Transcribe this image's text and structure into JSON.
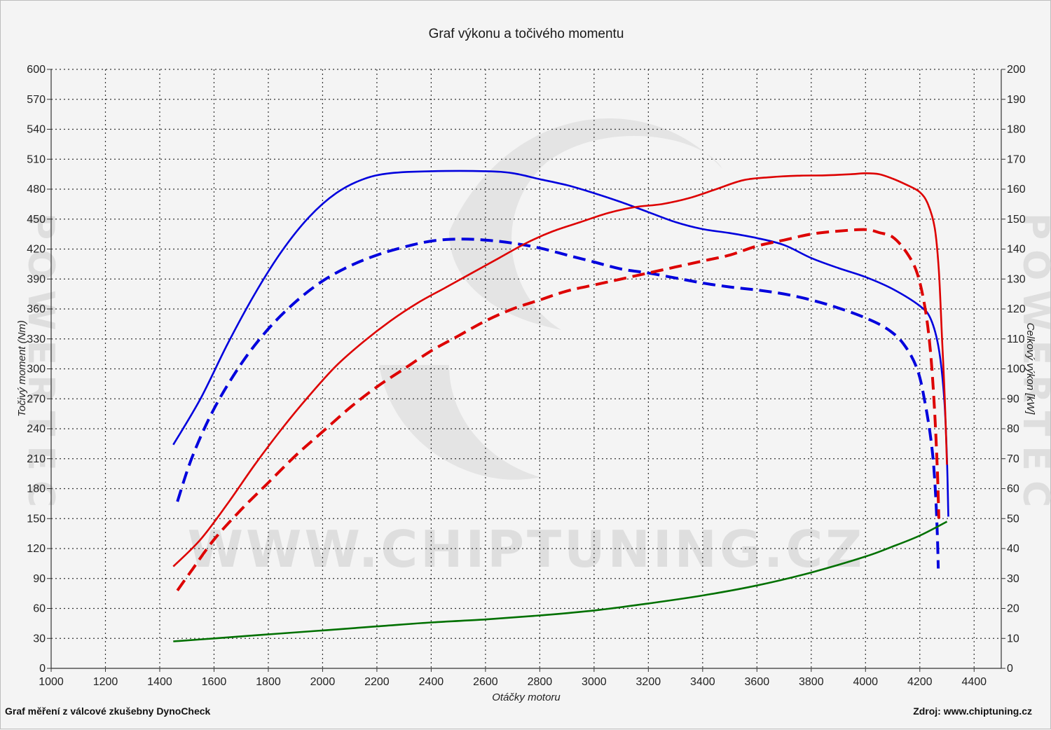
{
  "chart_data": {
    "type": "line",
    "title": "Graf výkonu a točivého momentu",
    "xlabel": "Otáčky motoru",
    "ylabel_left": "Točivý moment (Nm)",
    "ylabel_right": "Celkový výkon [kW]",
    "xlim": [
      1000,
      4500
    ],
    "xticks": [
      1000,
      1200,
      1400,
      1600,
      1800,
      2000,
      2200,
      2400,
      2600,
      2800,
      3000,
      3200,
      3400,
      3600,
      3800,
      4000,
      4200,
      4400
    ],
    "ylim_left": [
      0,
      600
    ],
    "yticks_left": [
      0,
      30,
      60,
      90,
      120,
      150,
      180,
      210,
      240,
      270,
      300,
      330,
      360,
      390,
      420,
      450,
      480,
      510,
      540,
      570,
      600
    ],
    "ylim_right": [
      0,
      200
    ],
    "yticks_right": [
      0,
      10,
      20,
      30,
      40,
      50,
      60,
      70,
      80,
      90,
      100,
      110,
      120,
      130,
      140,
      150,
      160,
      170,
      180,
      190,
      200
    ],
    "grid": true,
    "series": [
      {
        "name": "",
        "axis": "left",
        "color": "#0000dd",
        "style": "solid",
        "points": [
          [
            1450,
            224
          ],
          [
            1550,
            270
          ],
          [
            1650,
            325
          ],
          [
            1750,
            375
          ],
          [
            1850,
            418
          ],
          [
            1950,
            452
          ],
          [
            2050,
            476
          ],
          [
            2150,
            490
          ],
          [
            2250,
            496
          ],
          [
            2400,
            498
          ],
          [
            2600,
            498
          ],
          [
            2700,
            496
          ],
          [
            2800,
            490
          ],
          [
            2900,
            484
          ],
          [
            3000,
            476
          ],
          [
            3100,
            467
          ],
          [
            3200,
            457
          ],
          [
            3300,
            447
          ],
          [
            3400,
            440
          ],
          [
            3500,
            436
          ],
          [
            3600,
            431
          ],
          [
            3700,
            424
          ],
          [
            3800,
            411
          ],
          [
            3900,
            401
          ],
          [
            4000,
            392
          ],
          [
            4100,
            380
          ],
          [
            4200,
            363
          ],
          [
            4240,
            350
          ],
          [
            4270,
            320
          ],
          [
            4290,
            270
          ],
          [
            4300,
            210
          ],
          [
            4305,
            152
          ]
        ]
      },
      {
        "name": "",
        "axis": "left",
        "color": "#0000dd",
        "style": "dashed",
        "points": [
          [
            1465,
            167
          ],
          [
            1520,
            212
          ],
          [
            1600,
            260
          ],
          [
            1700,
            305
          ],
          [
            1800,
            340
          ],
          [
            1900,
            367
          ],
          [
            2000,
            388
          ],
          [
            2100,
            403
          ],
          [
            2200,
            414
          ],
          [
            2300,
            422
          ],
          [
            2400,
            428
          ],
          [
            2500,
            430
          ],
          [
            2600,
            429
          ],
          [
            2700,
            426
          ],
          [
            2800,
            421
          ],
          [
            2900,
            414
          ],
          [
            3000,
            407
          ],
          [
            3100,
            400
          ],
          [
            3200,
            396
          ],
          [
            3300,
            391
          ],
          [
            3400,
            386
          ],
          [
            3500,
            382
          ],
          [
            3600,
            379
          ],
          [
            3700,
            375
          ],
          [
            3800,
            369
          ],
          [
            3900,
            361
          ],
          [
            4000,
            351
          ],
          [
            4080,
            340
          ],
          [
            4140,
            325
          ],
          [
            4190,
            300
          ],
          [
            4220,
            265
          ],
          [
            4245,
            220
          ],
          [
            4258,
            175
          ],
          [
            4265,
            130
          ],
          [
            4268,
            100
          ]
        ]
      },
      {
        "name": "",
        "axis": "right",
        "color": "#dd0000",
        "style": "solid",
        "points": [
          [
            1450,
            34
          ],
          [
            1550,
            43
          ],
          [
            1650,
            55
          ],
          [
            1750,
            68
          ],
          [
            1850,
            80
          ],
          [
            1950,
            91
          ],
          [
            2050,
            101
          ],
          [
            2150,
            109
          ],
          [
            2250,
            116
          ],
          [
            2350,
            122
          ],
          [
            2450,
            127
          ],
          [
            2550,
            132
          ],
          [
            2650,
            137
          ],
          [
            2750,
            142
          ],
          [
            2850,
            146
          ],
          [
            2950,
            149
          ],
          [
            3050,
            152
          ],
          [
            3150,
            154
          ],
          [
            3250,
            155
          ],
          [
            3350,
            157
          ],
          [
            3450,
            160
          ],
          [
            3550,
            163
          ],
          [
            3650,
            164
          ],
          [
            3750,
            164.5
          ],
          [
            3850,
            164.6
          ],
          [
            3950,
            165
          ],
          [
            4000,
            165.3
          ],
          [
            4050,
            165
          ],
          [
            4100,
            163.5
          ],
          [
            4150,
            161.5
          ],
          [
            4200,
            159
          ],
          [
            4230,
            155
          ],
          [
            4255,
            147
          ],
          [
            4270,
            133
          ],
          [
            4282,
            110
          ],
          [
            4292,
            90
          ],
          [
            4300,
            68
          ]
        ]
      },
      {
        "name": "",
        "axis": "right",
        "color": "#dd0000",
        "style": "dashed",
        "points": [
          [
            1465,
            26
          ],
          [
            1520,
            33
          ],
          [
            1600,
            43
          ],
          [
            1700,
            53
          ],
          [
            1800,
            62
          ],
          [
            1900,
            71
          ],
          [
            2000,
            79
          ],
          [
            2100,
            87
          ],
          [
            2200,
            94
          ],
          [
            2300,
            100
          ],
          [
            2400,
            106
          ],
          [
            2500,
            111
          ],
          [
            2600,
            116
          ],
          [
            2700,
            120
          ],
          [
            2800,
            123
          ],
          [
            2900,
            126
          ],
          [
            3000,
            128
          ],
          [
            3100,
            130
          ],
          [
            3200,
            132
          ],
          [
            3300,
            134
          ],
          [
            3400,
            136
          ],
          [
            3500,
            138
          ],
          [
            3600,
            141
          ],
          [
            3700,
            143
          ],
          [
            3800,
            145
          ],
          [
            3900,
            146
          ],
          [
            4000,
            146.5
          ],
          [
            4050,
            145.5
          ],
          [
            4100,
            144
          ],
          [
            4150,
            139
          ],
          [
            4190,
            132
          ],
          [
            4220,
            120
          ],
          [
            4240,
            105
          ],
          [
            4255,
            85
          ],
          [
            4265,
            65
          ],
          [
            4270,
            50
          ]
        ]
      },
      {
        "name": "",
        "axis": "left",
        "color": "#007000",
        "style": "solid",
        "points": [
          [
            1450,
            27
          ],
          [
            1600,
            30
          ],
          [
            1800,
            34
          ],
          [
            2000,
            38
          ],
          [
            2200,
            42
          ],
          [
            2400,
            46
          ],
          [
            2600,
            49
          ],
          [
            2800,
            53
          ],
          [
            3000,
            58
          ],
          [
            3200,
            65
          ],
          [
            3400,
            73
          ],
          [
            3600,
            83
          ],
          [
            3800,
            96
          ],
          [
            4000,
            112
          ],
          [
            4100,
            122
          ],
          [
            4200,
            133
          ],
          [
            4300,
            147
          ]
        ]
      }
    ]
  },
  "watermark": {
    "center": "WWW.CHIPTUNING.CZ",
    "side": "POWERTEC"
  },
  "footer": {
    "left": "Graf měření z válcové zkušebny DynoCheck",
    "right": "Zdroj: www.chiptuning.cz"
  }
}
